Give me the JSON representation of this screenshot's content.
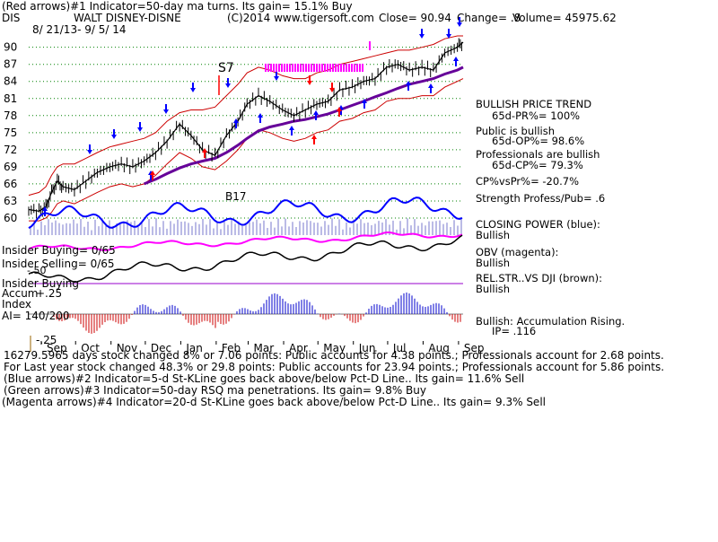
{
  "header": {
    "line1": "(Red arrows)#1 Indicator=50-day ma turns. Its gain= 15.1% Buy",
    "ticker": "DIS",
    "company": "WALT DISNEY-DISNE",
    "copyright": "(C)2014 www.tigersoft.com",
    "close": "Close=  90.94",
    "change": "Change= .8",
    "volume": "Volume=  45975.62",
    "date_range": "8/ 21/13-  9/ 5/ 14"
  },
  "right_panel": {
    "trend_title": "BULLISH PRICE TREND",
    "pr": "65d-PR%= 100%",
    "public": "Public is bullish",
    "op": "65d-OP%= 98.6%",
    "professionals": "Professionals are bullish",
    "cp": "65d-CP%= 79.3%",
    "cpvspr": "CP%vsPr%= -20.7%",
    "strength": "Strength Profess/Pub= .6",
    "closing_power": "CLOSING POWER (blue):",
    "closing_power_status": "Bullish",
    "obv": "OBV (magenta):",
    "obv_status": "Bullish",
    "relstr": "REL.STR..VS DJI (brown):",
    "relstr_status": "Bullish",
    "accum": "Bullish: Accumulation Rising.",
    "ip": "IP=  .116"
  },
  "left_labels": {
    "insider_buying": "Insider Buying= 0/65",
    "insider_selling": "Insider Selling= 0/65",
    "neg50": "-.50",
    "insider_buying2": "Insider Buying",
    "accum": "Accum",
    "plus25": "+.25",
    "index": "Index",
    "ai": "AI= 140/200",
    "neg25": "-.25"
  },
  "annotations": {
    "s7": "S7",
    "b17": "B17"
  },
  "footer": {
    "line1": "16279.5965 days stock changed  8% or  7.06 points:  Public accounts for  4.38 points.;  Professionals account for  2.68 points.",
    "line2": "For Last year stock changed  48.3% or  29.8 points:  Public accounts for  23.94 points.;  Professionals account for  5.86 points.",
    "line3": "(Blue arrows)#2 Indicator=5-d St-KLine goes back above/below Pct-D Line.. Its gain= 11.6% Sell",
    "line4": "(Green arrows)#3 Indicator=50-day RSQ ma penetrations. Its gain= 9.8% Buy",
    "line5": "(Magenta arrows)#4 Indicator=20-d St-KLine goes back above/below Pct-D Line.. Its gain= 9.3% Sell"
  },
  "colors": {
    "price": "#000000",
    "upper_band": "#cc0000",
    "ma50": "#660099",
    "closing_power": "#0000ff",
    "obv": "#ff00ff",
    "relstr": "#993300",
    "accum_pos": "#0000cc",
    "accum_neg": "#cc0000",
    "grid": "#008000"
  },
  "chart_data": {
    "type": "line",
    "ylim": [
      57,
      92
    ],
    "ytick_labels": [
      "90",
      "87",
      "84",
      "81",
      "78",
      "75",
      "72",
      "69",
      "66",
      "63",
      "60"
    ],
    "yticks": [
      90,
      87,
      84,
      81,
      78,
      75,
      72,
      69,
      66,
      63,
      60
    ],
    "xtick_labels": [
      "Sep",
      "Oct",
      "Nov",
      "Dec",
      "Jan",
      "Feb",
      "Mar",
      "Apr",
      "May",
      "Jun",
      "Jul",
      "Aug",
      "Sep"
    ],
    "x": [
      "2013-08-21",
      "2013-08-30",
      "2013-09-05",
      "2013-09-10",
      "2013-09-15",
      "2013-09-20",
      "2013-09-30",
      "2013-10-10",
      "2013-10-20",
      "2013-10-31",
      "2013-11-10",
      "2013-11-20",
      "2013-11-30",
      "2013-12-10",
      "2013-12-20",
      "2013-12-31",
      "2014-01-10",
      "2014-01-20",
      "2014-01-31",
      "2014-02-10",
      "2014-02-20",
      "2014-02-28",
      "2014-03-10",
      "2014-03-20",
      "2014-03-31",
      "2014-04-10",
      "2014-04-20",
      "2014-04-30",
      "2014-05-10",
      "2014-05-20",
      "2014-05-31",
      "2014-06-10",
      "2014-06-20",
      "2014-06-30",
      "2014-07-10",
      "2014-07-20",
      "2014-07-31",
      "2014-08-10",
      "2014-08-20",
      "2014-08-31",
      "2014-09-05"
    ],
    "series": [
      {
        "name": "price",
        "values": [
          61.5,
          61.2,
          62.0,
          64.5,
          66.5,
          65.5,
          65.0,
          66.5,
          68.0,
          69.0,
          69.5,
          69.0,
          70.0,
          71.5,
          73.5,
          76.5,
          74.5,
          72.0,
          71.0,
          74.5,
          77.0,
          80.0,
          81.5,
          80.5,
          79.0,
          78.0,
          79.0,
          80.0,
          80.5,
          82.5,
          83.0,
          84.0,
          84.5,
          86.5,
          87.0,
          86.0,
          86.5,
          86.0,
          89.0,
          90.0,
          90.9
        ]
      },
      {
        "name": "upper band",
        "values": [
          64.0,
          64.5,
          65.5,
          67.5,
          69.0,
          69.5,
          69.5,
          70.5,
          71.5,
          72.5,
          73.0,
          73.5,
          74.0,
          75.0,
          77.0,
          78.5,
          79.0,
          79.0,
          79.5,
          81.5,
          83.5,
          85.5,
          86.5,
          86.0,
          85.0,
          84.5,
          84.5,
          85.5,
          86.0,
          87.0,
          87.5,
          88.0,
          88.5,
          89.0,
          89.5,
          89.5,
          90.0,
          90.5,
          91.5,
          92.0,
          92.0
        ]
      },
      {
        "name": "lower band",
        "values": [
          59.5,
          59.5,
          60.0,
          61.0,
          62.5,
          63.0,
          62.5,
          63.5,
          64.5,
          65.5,
          66.0,
          65.5,
          66.0,
          67.5,
          69.5,
          71.5,
          70.5,
          69.0,
          68.5,
          70.0,
          72.0,
          74.0,
          75.5,
          75.0,
          74.0,
          73.5,
          74.0,
          75.0,
          75.5,
          77.0,
          77.5,
          78.5,
          79.0,
          80.5,
          81.0,
          81.0,
          81.5,
          81.5,
          83.0,
          84.0,
          84.5
        ]
      },
      {
        "name": "50-day ma",
        "values": [
          null,
          null,
          null,
          null,
          null,
          null,
          null,
          null,
          null,
          null,
          null,
          null,
          66.0,
          66.8,
          67.8,
          68.8,
          69.5,
          70.0,
          70.5,
          71.5,
          72.8,
          74.0,
          75.3,
          76.0,
          76.5,
          77.0,
          77.3,
          77.8,
          78.3,
          79.0,
          79.8,
          80.5,
          81.3,
          82.0,
          82.8,
          83.5,
          84.0,
          84.5,
          85.3,
          86.0,
          86.5
        ]
      }
    ]
  }
}
